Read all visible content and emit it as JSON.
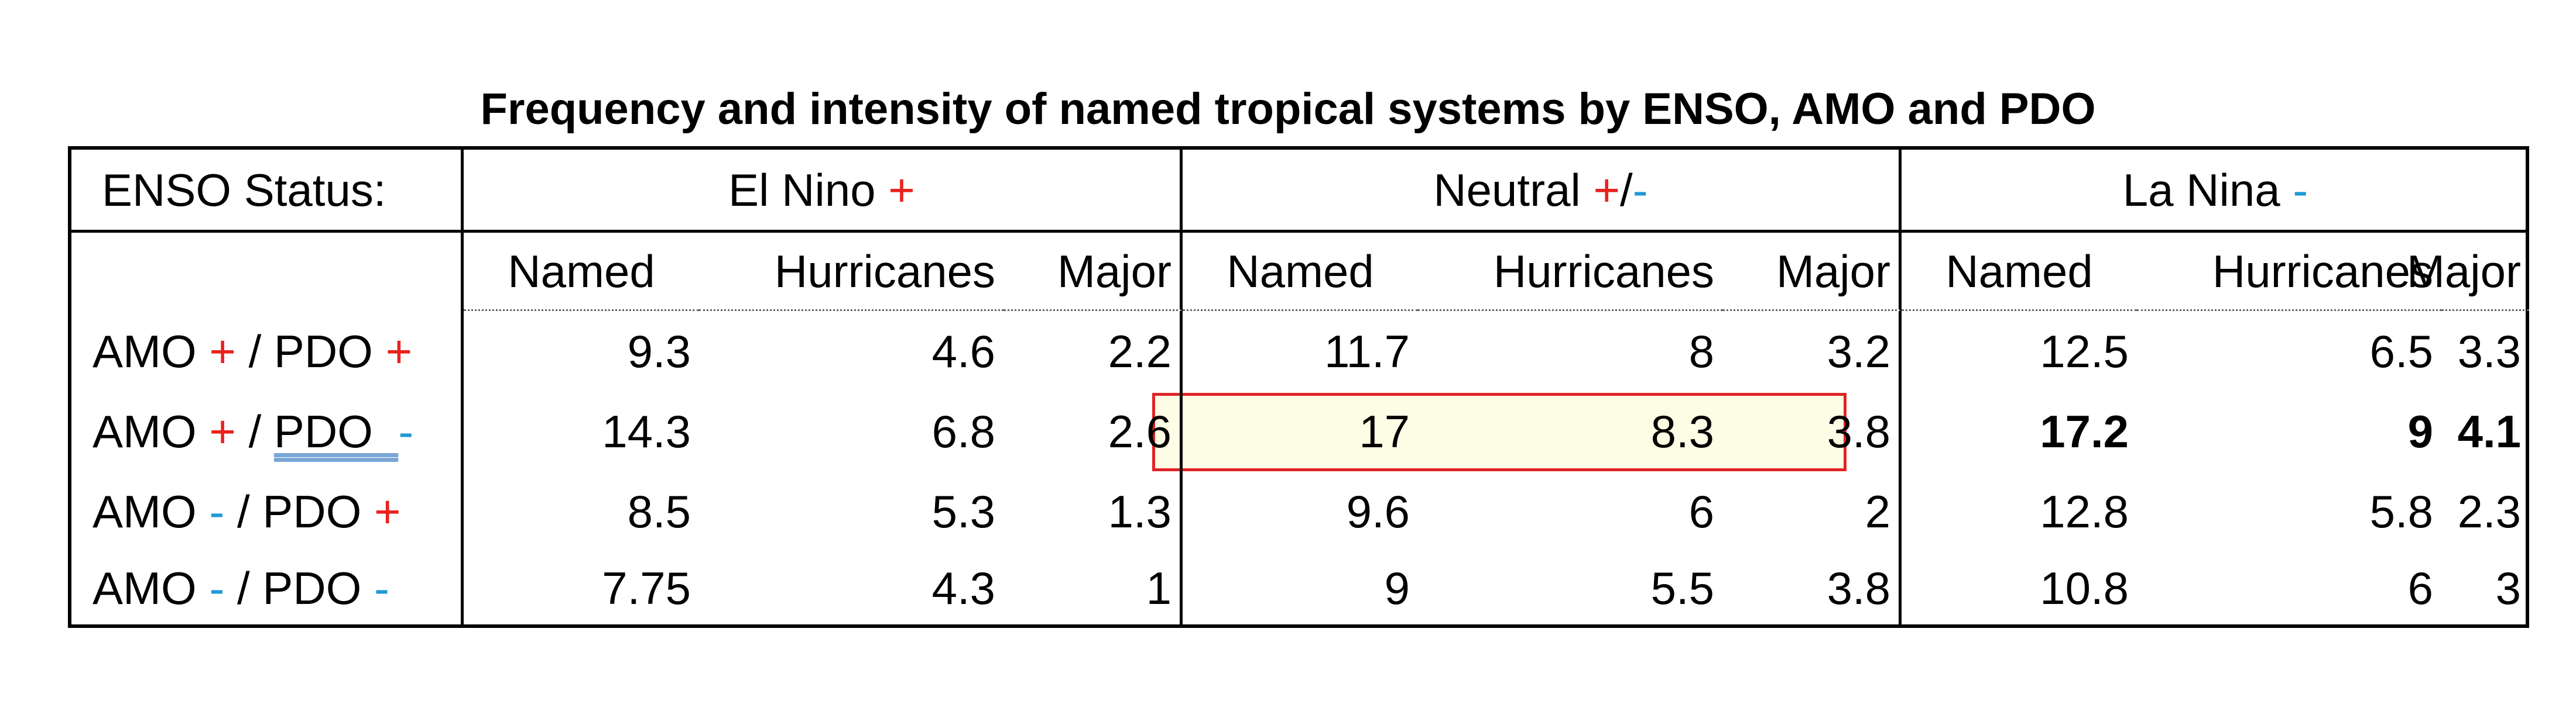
{
  "title": "Frequency and intensity of named tropical systems by ENSO, AMO and PDO",
  "enso_status_label": "ENSO Status:",
  "groups": [
    {
      "name": "El Nino",
      "sign": "+"
    },
    {
      "name": "Neutral",
      "sign_plus": "+",
      "sign_sep": "/",
      "sign_minus": "-"
    },
    {
      "name": "La Nina",
      "sign": "-"
    }
  ],
  "subheaders": [
    "Named",
    "Hurricanes",
    "Major"
  ],
  "rows": [
    {
      "amo_label": "AMO",
      "amo_sign": "+",
      "sep": "/",
      "pdo_label": "PDO",
      "pdo_sign": "+",
      "el_nino": [
        "9.3",
        "4.6",
        "2.2"
      ],
      "neutral": [
        "11.7",
        "8",
        "3.2"
      ],
      "la_nina": [
        "12.5",
        "6.5",
        "3.3"
      ]
    },
    {
      "amo_label": "AMO",
      "amo_sign": "+",
      "sep": "/",
      "pdo_label": "PDO",
      "pdo_sign": "-",
      "el_nino": [
        "14.3",
        "6.8",
        "2.6"
      ],
      "neutral": [
        "17",
        "8.3",
        "3.8"
      ],
      "la_nina": [
        "17.2",
        "9",
        "4.1"
      ]
    },
    {
      "amo_label": "AMO",
      "amo_sign": "-",
      "sep": "/",
      "pdo_label": "PDO",
      "pdo_sign": "+",
      "el_nino": [
        "8.5",
        "5.3",
        "1.3"
      ],
      "neutral": [
        "9.6",
        "6",
        "2"
      ],
      "la_nina": [
        "12.8",
        "5.8",
        "2.3"
      ]
    },
    {
      "amo_label": "AMO",
      "amo_sign": "-",
      "sep": "/",
      "pdo_label": "PDO",
      "pdo_sign": "-",
      "el_nino": [
        "7.75",
        "4.3",
        "1"
      ],
      "neutral": [
        "9",
        "5.5",
        "3.8"
      ],
      "la_nina": [
        "10.8",
        "6",
        "3"
      ]
    }
  ],
  "colors": {
    "plus": "#e8231e",
    "minus": "#1f9ad6",
    "highlight_fill": "#fdfde5",
    "highlight_border": "#e02424"
  }
}
